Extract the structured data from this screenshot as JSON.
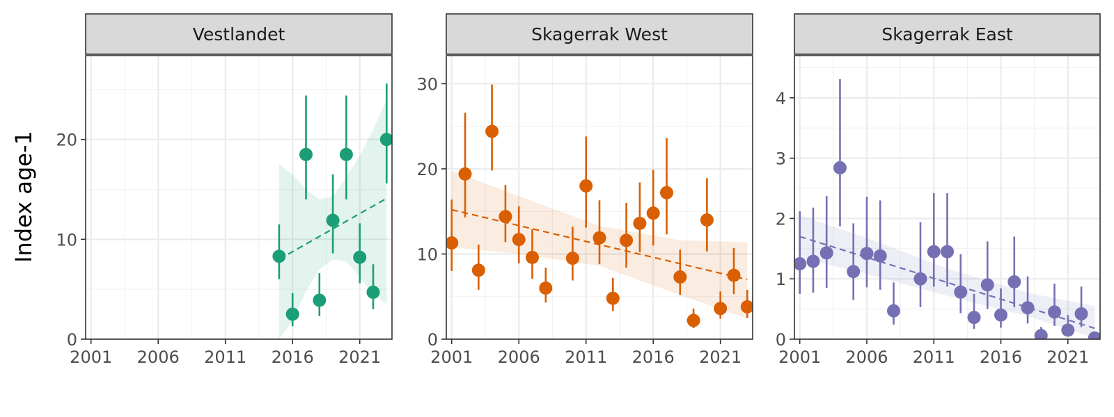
{
  "chart_data": {
    "type": "scatter",
    "ylabel": "Index age-1",
    "xlabel": "",
    "xticks": [
      2001,
      2006,
      2011,
      2016,
      2021
    ],
    "xlim": [
      2000.6,
      2023.4
    ],
    "panels": [
      {
        "name": "Vestlandet",
        "color": "#1b9e77",
        "ylim": [
          0,
          28.4
        ],
        "yticks": [
          0,
          10,
          20
        ],
        "points": [
          {
            "x": 2015,
            "y": 8.3,
            "lo": 6.0,
            "hi": 11.5
          },
          {
            "x": 2016,
            "y": 2.5,
            "lo": 1.3,
            "hi": 4.6
          },
          {
            "x": 2017,
            "y": 18.5,
            "lo": 14.0,
            "hi": 24.4
          },
          {
            "x": 2018,
            "y": 3.9,
            "lo": 2.3,
            "hi": 6.6
          },
          {
            "x": 2019,
            "y": 11.9,
            "lo": 8.6,
            "hi": 16.5
          },
          {
            "x": 2020,
            "y": 18.5,
            "lo": 14.0,
            "hi": 24.4
          },
          {
            "x": 2021,
            "y": 8.2,
            "lo": 5.6,
            "hi": 11.6
          },
          {
            "x": 2022,
            "y": 4.7,
            "lo": 3.0,
            "hi": 7.5
          },
          {
            "x": 2023,
            "y": 20.0,
            "lo": 15.6,
            "hi": 25.6
          }
        ],
        "trend": {
          "x": [
            2015,
            2023
          ],
          "y": [
            8.0,
            14.1
          ]
        },
        "band": {
          "x": [
            2015,
            2016,
            2017,
            2018,
            2019,
            2020,
            2021,
            2022,
            2023
          ],
          "lo": [
            0,
            1.8,
            4.8,
            7.0,
            8.0,
            7.8,
            6.2,
            4.5,
            3.5
          ],
          "hi": [
            17.5,
            16.5,
            15.0,
            14.0,
            14.3,
            16.2,
            18.4,
            21.0,
            24.0
          ]
        }
      },
      {
        "name": "Skagerrak West",
        "color": "#d95f02",
        "ylim": [
          0,
          33.3
        ],
        "yticks": [
          0,
          10,
          20,
          30
        ],
        "points": [
          {
            "x": 2001,
            "y": 11.3,
            "lo": 8.0,
            "hi": 16.4
          },
          {
            "x": 2002,
            "y": 19.4,
            "lo": 14.3,
            "hi": 26.6
          },
          {
            "x": 2003,
            "y": 8.1,
            "lo": 5.8,
            "hi": 11.1
          },
          {
            "x": 2004,
            "y": 24.4,
            "lo": 19.8,
            "hi": 29.9
          },
          {
            "x": 2005,
            "y": 14.4,
            "lo": 11.4,
            "hi": 18.1
          },
          {
            "x": 2006,
            "y": 11.7,
            "lo": 8.9,
            "hi": 15.6
          },
          {
            "x": 2007,
            "y": 9.6,
            "lo": 7.1,
            "hi": 12.9
          },
          {
            "x": 2008,
            "y": 6.0,
            "lo": 4.3,
            "hi": 8.4
          },
          {
            "x": 2010,
            "y": 9.5,
            "lo": 6.9,
            "hi": 13.2
          },
          {
            "x": 2011,
            "y": 18.0,
            "lo": 13.1,
            "hi": 23.8
          },
          {
            "x": 2012,
            "y": 11.9,
            "lo": 8.8,
            "hi": 16.3
          },
          {
            "x": 2013,
            "y": 4.8,
            "lo": 3.3,
            "hi": 7.2
          },
          {
            "x": 2014,
            "y": 11.6,
            "lo": 8.4,
            "hi": 16.0
          },
          {
            "x": 2015,
            "y": 13.6,
            "lo": 10.2,
            "hi": 18.4
          },
          {
            "x": 2016,
            "y": 14.8,
            "lo": 11.0,
            "hi": 19.9
          },
          {
            "x": 2017,
            "y": 17.2,
            "lo": 12.3,
            "hi": 23.6
          },
          {
            "x": 2018,
            "y": 7.3,
            "lo": 5.2,
            "hi": 10.5
          },
          {
            "x": 2019,
            "y": 2.2,
            "lo": 1.3,
            "hi": 3.6
          },
          {
            "x": 2020,
            "y": 14.0,
            "lo": 10.3,
            "hi": 18.9
          },
          {
            "x": 2021,
            "y": 3.6,
            "lo": 2.4,
            "hi": 5.6
          },
          {
            "x": 2022,
            "y": 7.5,
            "lo": 5.3,
            "hi": 10.7
          },
          {
            "x": 2023,
            "y": 3.8,
            "lo": 2.5,
            "hi": 5.8
          }
        ],
        "trend": {
          "x": [
            2001,
            2023
          ],
          "y": [
            15.2,
            7.0
          ]
        },
        "band": {
          "x": [
            2001,
            2006,
            2012,
            2018,
            2023
          ],
          "lo": [
            10.8,
            10.0,
            8.6,
            5.2,
            2.4
          ],
          "hi": [
            19.8,
            16.8,
            13.3,
            11.6,
            11.4
          ]
        }
      },
      {
        "name": "Skagerrak East",
        "color": "#7570b3",
        "ylim": [
          0,
          4.7
        ],
        "yticks": [
          0,
          1,
          2,
          3,
          4
        ],
        "points": [
          {
            "x": 2001,
            "y": 1.25,
            "lo": 0.75,
            "hi": 2.12
          },
          {
            "x": 2002,
            "y": 1.29,
            "lo": 0.77,
            "hi": 2.18
          },
          {
            "x": 2003,
            "y": 1.43,
            "lo": 0.85,
            "hi": 2.37
          },
          {
            "x": 2004,
            "y": 2.84,
            "lo": 1.87,
            "hi": 4.31
          },
          {
            "x": 2005,
            "y": 1.12,
            "lo": 0.65,
            "hi": 1.92
          },
          {
            "x": 2006,
            "y": 1.42,
            "lo": 0.86,
            "hi": 2.36
          },
          {
            "x": 2007,
            "y": 1.38,
            "lo": 0.82,
            "hi": 2.3
          },
          {
            "x": 2008,
            "y": 0.47,
            "lo": 0.24,
            "hi": 0.94
          },
          {
            "x": 2010,
            "y": 1.0,
            "lo": 0.53,
            "hi": 1.94
          },
          {
            "x": 2011,
            "y": 1.45,
            "lo": 0.87,
            "hi": 2.42
          },
          {
            "x": 2012,
            "y": 1.45,
            "lo": 0.87,
            "hi": 2.42
          },
          {
            "x": 2013,
            "y": 0.78,
            "lo": 0.43,
            "hi": 1.41
          },
          {
            "x": 2014,
            "y": 0.36,
            "lo": 0.17,
            "hi": 0.75
          },
          {
            "x": 2015,
            "y": 0.9,
            "lo": 0.5,
            "hi": 1.62
          },
          {
            "x": 2016,
            "y": 0.4,
            "lo": 0.19,
            "hi": 0.84
          },
          {
            "x": 2017,
            "y": 0.95,
            "lo": 0.53,
            "hi": 1.7
          },
          {
            "x": 2018,
            "y": 0.52,
            "lo": 0.26,
            "hi": 1.04
          },
          {
            "x": 2019,
            "y": 0.06,
            "lo": 0.01,
            "hi": 0.2
          },
          {
            "x": 2020,
            "y": 0.45,
            "lo": 0.22,
            "hi": 0.92
          },
          {
            "x": 2021,
            "y": 0.15,
            "lo": 0.05,
            "hi": 0.4
          },
          {
            "x": 2022,
            "y": 0.42,
            "lo": 0.2,
            "hi": 0.87
          },
          {
            "x": 2023,
            "y": 0.02,
            "lo": 0.0,
            "hi": 0.08
          }
        ],
        "trend": {
          "x": [
            2001,
            2023
          ],
          "y": [
            1.7,
            0.18
          ]
        },
        "band": {
          "x": [
            2001,
            2006,
            2012,
            2018,
            2023
          ],
          "lo": [
            1.35,
            1.08,
            0.72,
            0.38,
            0.02
          ],
          "hi": [
            2.05,
            1.68,
            1.17,
            0.77,
            0.55
          ]
        }
      }
    ]
  }
}
